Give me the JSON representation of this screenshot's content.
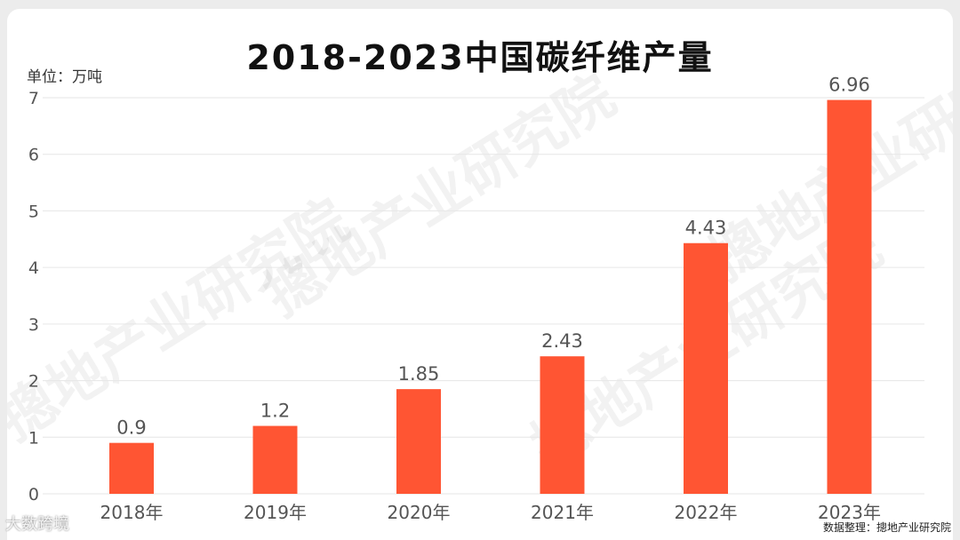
{
  "header": {
    "title": "2018-2023中国碳纤维产量",
    "unit_label": "单位：万吨"
  },
  "watermark_text": "摠地产业研究院",
  "footer": {
    "logo_text": "大数跨境",
    "source_text": "数据整理：摠地产业研究院"
  },
  "colors": {
    "bar": "#ff5533",
    "grid": "#e6e6e6",
    "axis_text": "#555555",
    "label_text": "#555555"
  },
  "chart_data": {
    "type": "bar",
    "title": "2018-2023中国碳纤维产量",
    "ylabel": "单位：万吨",
    "xlabel": "",
    "categories": [
      "2018年",
      "2019年",
      "2020年",
      "2021年",
      "2022年",
      "2023年"
    ],
    "values": [
      0.9,
      1.2,
      1.85,
      2.43,
      4.43,
      6.96
    ],
    "value_labels": [
      "0.9",
      "1.2",
      "1.85",
      "2.43",
      "4.43",
      "6.96"
    ],
    "ylim": [
      0,
      7
    ],
    "yticks": [
      "0",
      "1",
      "2",
      "3",
      "4",
      "5",
      "6",
      "7"
    ],
    "grid": true,
    "legend": "none"
  }
}
